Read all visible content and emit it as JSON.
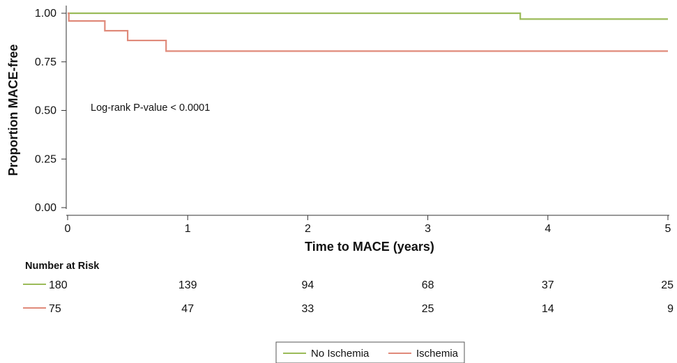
{
  "chart_data": {
    "type": "line",
    "subtype": "kaplan-meier step",
    "xlabel": "Time to MACE (years)",
    "ylabel": "Proportion MACE-free",
    "xlim": [
      0,
      5
    ],
    "ylim": [
      0,
      1
    ],
    "x_ticks": [
      "0",
      "1",
      "2",
      "3",
      "4",
      "5"
    ],
    "y_ticks": [
      "0.00",
      "0.25",
      "0.50",
      "0.75",
      "1.00"
    ],
    "grid": false,
    "legend_position": "bottom-center",
    "annotation": "Log-rank P-value < 0.0001",
    "series": [
      {
        "name": "No Ischemia",
        "color": "#9bbb59",
        "steps": [
          [
            0,
            1.0
          ],
          [
            3.77,
            0.97
          ],
          [
            5,
            0.97
          ]
        ]
      },
      {
        "name": "Ischemia",
        "color": "#e08a7a",
        "steps": [
          [
            0,
            1.0
          ],
          [
            0.01,
            0.96
          ],
          [
            0.31,
            0.91
          ],
          [
            0.5,
            0.86
          ],
          [
            0.82,
            0.805
          ],
          [
            5,
            0.805
          ]
        ]
      }
    ],
    "risk_table": {
      "title": "Number at Risk",
      "times": [
        0,
        1,
        2,
        3,
        4,
        5
      ],
      "rows": [
        {
          "series": "No Ischemia",
          "values": [
            "180",
            "139",
            "94",
            "68",
            "37",
            "25"
          ]
        },
        {
          "series": "Ischemia",
          "values": [
            "75",
            "47",
            "33",
            "25",
            "14",
            "9"
          ]
        }
      ]
    }
  }
}
